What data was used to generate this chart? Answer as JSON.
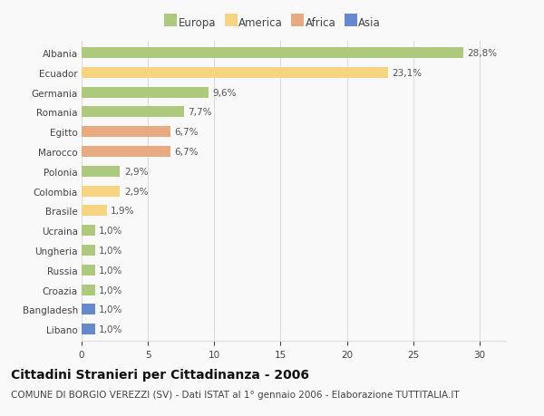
{
  "countries": [
    "Albania",
    "Ecuador",
    "Germania",
    "Romania",
    "Egitto",
    "Marocco",
    "Polonia",
    "Colombia",
    "Brasile",
    "Ucraina",
    "Ungheria",
    "Russia",
    "Croazia",
    "Bangladesh",
    "Libano"
  ],
  "values": [
    28.8,
    23.1,
    9.6,
    7.7,
    6.7,
    6.7,
    2.9,
    2.9,
    1.9,
    1.0,
    1.0,
    1.0,
    1.0,
    1.0,
    1.0
  ],
  "labels": [
    "28,8%",
    "23,1%",
    "9,6%",
    "7,7%",
    "6,7%",
    "6,7%",
    "2,9%",
    "2,9%",
    "1,9%",
    "1,0%",
    "1,0%",
    "1,0%",
    "1,0%",
    "1,0%",
    "1,0%"
  ],
  "continents": [
    "Europa",
    "America",
    "Europa",
    "Europa",
    "Africa",
    "Africa",
    "Europa",
    "America",
    "America",
    "Europa",
    "Europa",
    "Europa",
    "Europa",
    "Asia",
    "Asia"
  ],
  "colors": {
    "Europa": "#adc97e",
    "America": "#f7d482",
    "Africa": "#e8aa80",
    "Asia": "#6688cc"
  },
  "legend_order": [
    "Europa",
    "America",
    "Africa",
    "Asia"
  ],
  "xlim": [
    0,
    32
  ],
  "xticks": [
    0,
    5,
    10,
    15,
    20,
    25,
    30
  ],
  "title": "Cittadini Stranieri per Cittadinanza - 2006",
  "subtitle": "COMUNE DI BORGIO VEREZZI (SV) - Dati ISTAT al 1° gennaio 2006 - Elaborazione TUTTITALIA.IT",
  "background_color": "#f9f9f9",
  "grid_color": "#dddddd",
  "bar_height": 0.55,
  "title_fontsize": 10,
  "subtitle_fontsize": 7.5,
  "tick_fontsize": 7.5,
  "label_fontsize": 7.5,
  "legend_fontsize": 8.5
}
